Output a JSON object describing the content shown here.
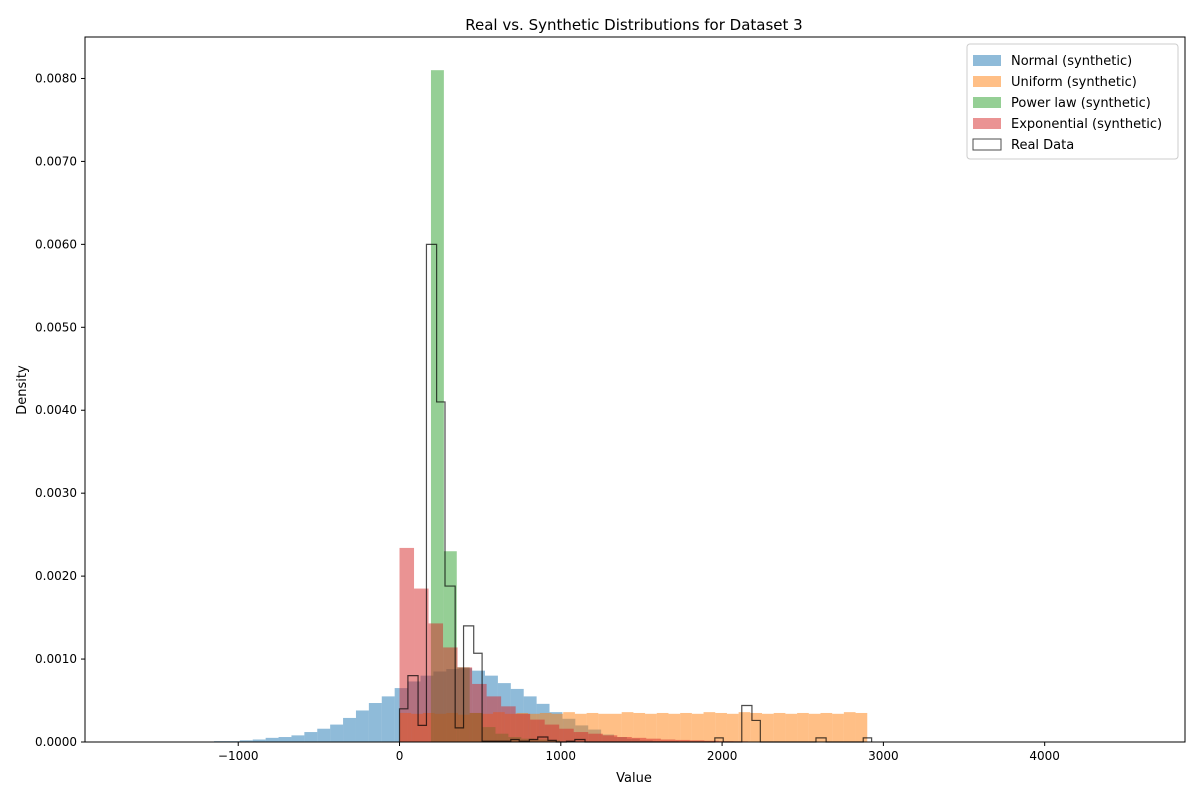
{
  "chart_data": {
    "type": "histogram",
    "title": "Real vs. Synthetic Distributions for Dataset 3",
    "xlabel": "Value",
    "ylabel": "Density",
    "xlim": [
      -1950,
      4870
    ],
    "ylim": [
      0,
      0.0085
    ],
    "x_ticks": [
      -1000,
      0,
      1000,
      2000,
      3000,
      4000
    ],
    "x_tick_labels": [
      "−1000",
      "0",
      "1000",
      "2000",
      "3000",
      "4000"
    ],
    "y_ticks": [
      0,
      0.001,
      0.002,
      0.003,
      0.004,
      0.005,
      0.006,
      0.007,
      0.008
    ],
    "y_tick_labels": [
      "0.0000",
      "0.0010",
      "0.0020",
      "0.0030",
      "0.0040",
      "0.0050",
      "0.0060",
      "0.0070",
      "0.0080"
    ],
    "grid": false,
    "legend_position": "upper right",
    "series": [
      {
        "name": "Normal (synthetic)",
        "color": "#1f77b4",
        "opacity": 0.5,
        "style": "filled",
        "bin_edges": [
          -1150,
          -1070,
          -990,
          -910,
          -830,
          -750,
          -670,
          -590,
          -510,
          -430,
          -350,
          -270,
          -190,
          -110,
          -30,
          50,
          130,
          210,
          290,
          370,
          450,
          530,
          610,
          690,
          770,
          850,
          930,
          1010,
          1090,
          1170,
          1250,
          1330,
          1410,
          1490,
          1570,
          1650,
          1730,
          1810,
          1890,
          1970,
          2050
        ],
        "values": [
          1e-05,
          1e-05,
          2e-05,
          3e-05,
          5e-05,
          6e-05,
          8e-05,
          0.00012,
          0.00016,
          0.00021,
          0.00029,
          0.00038,
          0.00047,
          0.00055,
          0.00065,
          0.00073,
          0.0008,
          0.00085,
          0.00088,
          0.00089,
          0.00086,
          0.0008,
          0.00071,
          0.00064,
          0.00055,
          0.00046,
          0.00036,
          0.00028,
          0.0002,
          0.00015,
          9e-05,
          6e-05,
          4e-05,
          2e-05,
          1e-05,
          1e-05,
          5e-06,
          3e-06,
          2e-06,
          1e-06
        ]
      },
      {
        "name": "Uniform (synthetic)",
        "color": "#ff7f0e",
        "opacity": 0.5,
        "style": "filled",
        "bin_edges": [
          0,
          72.5,
          145,
          217.5,
          290,
          362.5,
          435,
          507.5,
          580,
          652.5,
          725,
          797.5,
          870,
          942.5,
          1015,
          1087.5,
          1160,
          1232.5,
          1305,
          1377.5,
          1450,
          1522.5,
          1595,
          1667.5,
          1740,
          1812.5,
          1885,
          1957.5,
          2030,
          2102.5,
          2175,
          2247.5,
          2320,
          2392.5,
          2465,
          2537.5,
          2610,
          2682.5,
          2755,
          2827.5,
          2900
        ],
        "values": [
          0.00035,
          0.00034,
          0.00035,
          0.00034,
          0.00035,
          0.00033,
          0.00035,
          0.00034,
          0.00036,
          0.00034,
          0.00035,
          0.00034,
          0.00035,
          0.00034,
          0.00036,
          0.00034,
          0.00035,
          0.00034,
          0.00034,
          0.00036,
          0.00035,
          0.00034,
          0.00035,
          0.00034,
          0.00035,
          0.00034,
          0.00036,
          0.00035,
          0.00034,
          0.00036,
          0.00035,
          0.00034,
          0.00035,
          0.00034,
          0.00035,
          0.00034,
          0.00035,
          0.00034,
          0.00036,
          0.00035
        ]
      },
      {
        "name": "Power law (synthetic)",
        "color": "#2ca02c",
        "opacity": 0.5,
        "style": "filled",
        "bin_edges": [
          195,
          275,
          355,
          435,
          515,
          595,
          675,
          755,
          835,
          915,
          995
        ],
        "values": [
          0.0081,
          0.0023,
          0.0009,
          0.00035,
          0.00018,
          0.0001,
          6e-05,
          4e-05,
          3e-05,
          2e-05
        ]
      },
      {
        "name": "Exponential (synthetic)",
        "color": "#d62728",
        "opacity": 0.5,
        "style": "filled",
        "bin_edges": [
          0,
          90,
          180,
          270,
          360,
          450,
          540,
          630,
          720,
          810,
          900,
          990,
          1080,
          1170,
          1260,
          1350,
          1440,
          1530,
          1620,
          1710,
          1800,
          1890,
          1980,
          2070,
          2160,
          2250,
          2340,
          2430,
          2520
        ],
        "values": [
          0.00234,
          0.00185,
          0.00143,
          0.00114,
          0.0009,
          0.0007,
          0.00055,
          0.00043,
          0.00034,
          0.00027,
          0.00021,
          0.00016,
          0.00012,
          0.0001,
          8e-05,
          6e-05,
          5e-05,
          4e-05,
          3e-05,
          2.5e-05,
          2e-05,
          1.5e-05,
          1e-05,
          8e-06,
          6e-06,
          5e-06,
          4e-06,
          3e-06
        ]
      },
      {
        "name": "Real Data",
        "color": "#000000",
        "opacity": 0.7,
        "style": "step",
        "bin_edges": [
          0,
          52,
          115,
          167,
          230,
          282,
          345,
          397,
          460,
          512,
          575,
          627,
          690,
          742,
          805,
          857,
          920,
          972,
          1035,
          1087,
          1150,
          1202,
          1265,
          1317,
          1380,
          1432,
          1495,
          1547,
          1610,
          1662,
          1725,
          1777,
          1840,
          1892,
          1955,
          2007,
          2070,
          2122,
          2185,
          2237,
          2300,
          2352,
          2415,
          2467,
          2530,
          2582,
          2645,
          2697,
          2760,
          2812,
          2875,
          2927
        ],
        "values": [
          0.0004,
          0.0008,
          0.0002,
          0.006,
          0.0041,
          0.00188,
          0.00017,
          0.0014,
          0.00107,
          1e-05,
          1e-05,
          1e-05,
          3e-05,
          1e-05,
          3e-05,
          6e-05,
          2e-05,
          0,
          1e-05,
          3e-05,
          0,
          0,
          0,
          0,
          0,
          0,
          0,
          0,
          0,
          0,
          0,
          0,
          0,
          0,
          5e-05,
          0,
          0,
          0.00044,
          0.00026,
          0,
          0,
          0,
          0,
          0,
          0,
          5e-05,
          0,
          0,
          0,
          0,
          5e-05
        ]
      }
    ]
  }
}
